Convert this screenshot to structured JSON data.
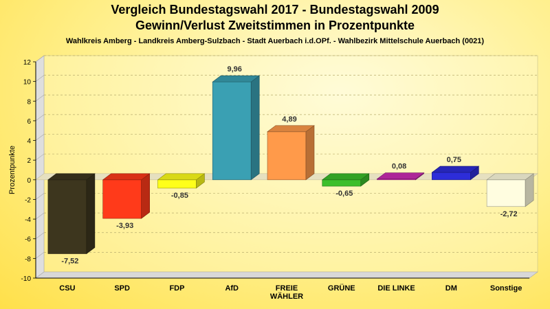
{
  "chart_data": {
    "type": "bar",
    "title": "Vergleich Bundestagswahl 2017 - Bundestagswahl 2009",
    "subtitle": "Gewinn/Verlust Zweitstimmen in Prozentpunkte",
    "caption": "Wahlkreis Amberg - Landkreis Amberg-Sulzbach - Stadt Auerbach i.d.OPf. - Wahlbezirk Mittelschule Auerbach (0021)",
    "ylabel": "Prozentpunkte",
    "xlabel": "",
    "ylim": [
      -10,
      12
    ],
    "yticks": [
      12,
      10,
      8,
      6,
      4,
      2,
      0,
      -2,
      -4,
      -6,
      -8,
      -10
    ],
    "grid": true,
    "categories": [
      "CSU",
      "SPD",
      "FDP",
      "AfD",
      "FREIE WÄHLER",
      "GRÜNE",
      "DIE LINKE",
      "DM",
      "Sonstige"
    ],
    "category_lines": [
      [
        "CSU"
      ],
      [
        "SPD"
      ],
      [
        "FDP"
      ],
      [
        "AfD"
      ],
      [
        "FREIE",
        "WÄHLER"
      ],
      [
        "GRÜNE"
      ],
      [
        "DIE LINKE"
      ],
      [
        "DM"
      ],
      [
        "Sonstige"
      ]
    ],
    "values": [
      -7.52,
      -3.93,
      -0.85,
      9.96,
      4.89,
      -0.65,
      0.08,
      0.75,
      -2.72
    ],
    "value_labels": [
      "-7,52",
      "-3,93",
      "-0,85",
      "9,96",
      "4,89",
      "-0,65",
      "0,08",
      "0,75",
      "-2,72"
    ],
    "colors": [
      "#3d361e",
      "#ff3a1a",
      "#ffff1a",
      "#3aa0b3",
      "#ff9a4a",
      "#3cbf2c",
      "#cc2db3",
      "#2d2dd9",
      "#fffde0"
    ]
  }
}
